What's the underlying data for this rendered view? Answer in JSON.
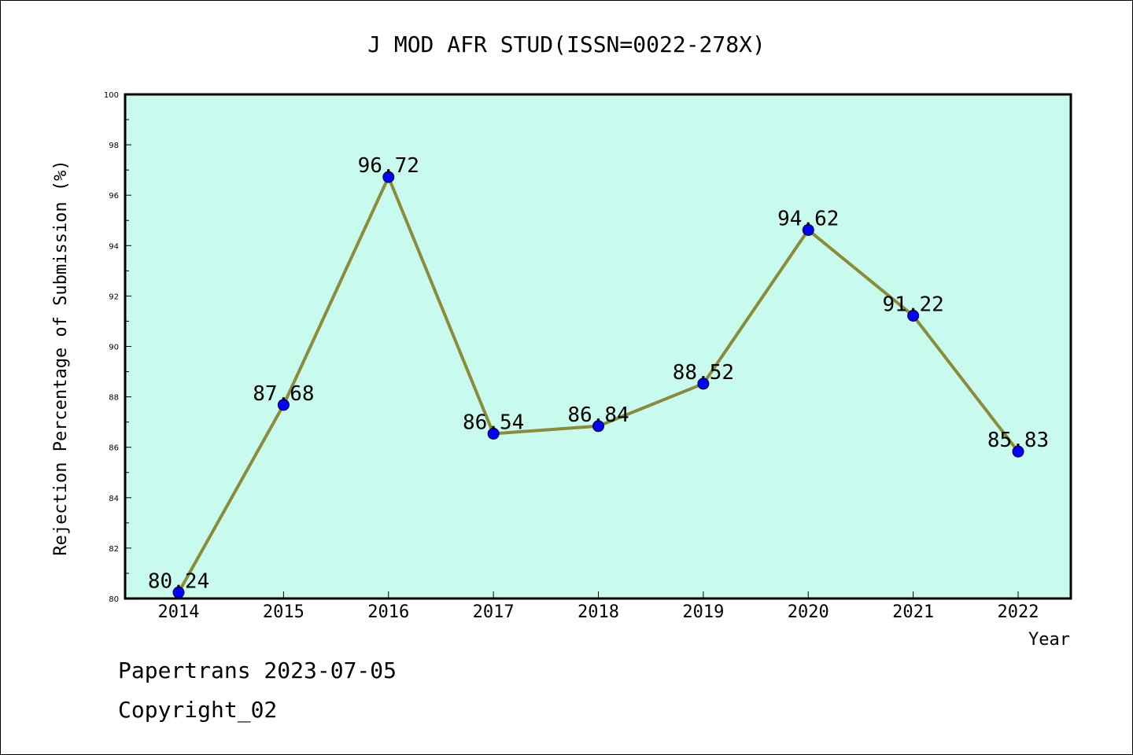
{
  "chart_data": {
    "type": "line",
    "title": "J MOD AFR STUD(ISSN=0022-278X)",
    "xlabel": "Year",
    "ylabel": "Rejection Percentage of Submission (%)",
    "categories": [
      "2014",
      "2015",
      "2016",
      "2017",
      "2018",
      "2019",
      "2020",
      "2021",
      "2022"
    ],
    "values": [
      80.24,
      87.68,
      96.72,
      86.54,
      86.84,
      88.52,
      94.62,
      91.22,
      85.83
    ],
    "data_labels": [
      "80.24",
      "87.68",
      "96.72",
      "86.54",
      "86.84",
      "88.52",
      "94.62",
      "91.22",
      "85.83"
    ],
    "ylim": [
      80,
      100
    ],
    "yticks": [
      "80",
      "82",
      "84",
      "86",
      "88",
      "90",
      "92",
      "94",
      "96",
      "98",
      "100"
    ],
    "grid": false,
    "colors": {
      "plot_background": "#c8fbee",
      "line": "#8b8b3a",
      "marker": "#0000ff"
    }
  },
  "footer": {
    "line1": "Papertrans 2023-07-05",
    "line2": "Copyright_02"
  }
}
